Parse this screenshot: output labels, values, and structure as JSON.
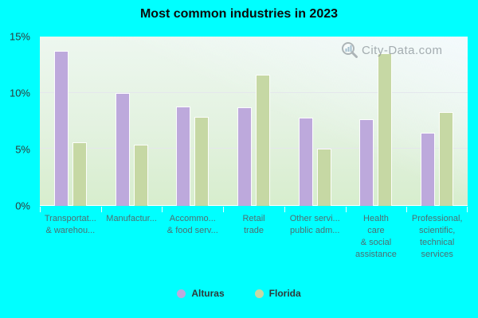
{
  "title": "Most common industries in 2023",
  "watermark": {
    "text": "City-Data.com"
  },
  "colors": {
    "background": "#00ffff",
    "alturas_bar": "#bda9dc",
    "florida_bar": "#c6d8a4",
    "plot_gradient_top": "#edf7ef",
    "plot_gradient_bottom": "#d7edcd",
    "axis_label": "#2e3a3a",
    "category_label": "#4e6e72",
    "gridline": "#e4e6ec",
    "watermark_gray": "#8e979c"
  },
  "legend": {
    "items": [
      {
        "label": "Alturas",
        "color": "#bda9dc"
      },
      {
        "label": "Florida",
        "color": "#c6d8a4"
      }
    ]
  },
  "y_axis": {
    "tick_labels": [
      "0%",
      "5%",
      "10%",
      "15%"
    ]
  },
  "chart_data": {
    "type": "bar",
    "title": "Most common industries in 2023",
    "categories": [
      "Transportat... & warehou...",
      "Manufactur...",
      "Accommo... & food serv...",
      "Retail trade",
      "Other servi... public adm...",
      "Health care & social assistance",
      "Professional, scientific, technical services"
    ],
    "category_display_lines": [
      [
        "Transportat...",
        "& warehou..."
      ],
      [
        "Manufactur..."
      ],
      [
        "Accommo...",
        "& food serv..."
      ],
      [
        "Retail",
        "trade"
      ],
      [
        "Other servi...",
        "public adm..."
      ],
      [
        "Health",
        "care",
        "& social",
        "assistance"
      ],
      [
        "Professional,",
        "scientific,",
        "technical",
        "services"
      ]
    ],
    "series": [
      {
        "name": "Alturas",
        "color": "#bda9dc",
        "values": [
          13.7,
          10.0,
          8.8,
          8.7,
          7.8,
          7.7,
          6.5
        ]
      },
      {
        "name": "Florida",
        "color": "#c6d8a4",
        "values": [
          5.6,
          5.4,
          7.9,
          11.6,
          5.1,
          13.5,
          8.3
        ]
      }
    ],
    "xlabel": "",
    "ylabel": "",
    "ylim": [
      0,
      15
    ],
    "yticks": [
      0,
      5,
      10,
      15
    ],
    "ytick_format": "percent",
    "grid": "horizontal",
    "legend_position": "bottom"
  }
}
